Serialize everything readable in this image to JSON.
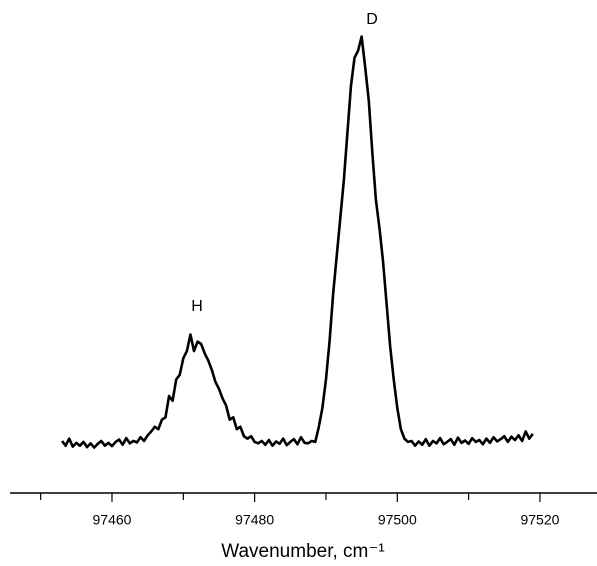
{
  "chart_data": {
    "type": "line",
    "xlabel": "Wavenumber, cm⁻¹",
    "annotations": [
      "H",
      "D"
    ],
    "xlim": [
      97445.7,
      97528
    ],
    "xticks": [
      97460,
      97480,
      97500,
      97520
    ],
    "xminor_ticks": [
      97450,
      97470,
      97490,
      97510
    ],
    "ylim": [
      0,
      100
    ],
    "color": "#000000",
    "x": [
      97453,
      97453.5,
      97454,
      97454.5,
      97455,
      97455.5,
      97456,
      97456.5,
      97457,
      97457.5,
      97458,
      97458.5,
      97459,
      97459.5,
      97460,
      97460.5,
      97461,
      97461.5,
      97462,
      97462.5,
      97463,
      97463.5,
      97464,
      97464.5,
      97465,
      97465.5,
      97466,
      97466.5,
      97467,
      97467.5,
      97468,
      97468.5,
      97469,
      97469.5,
      97470,
      97470.5,
      97471,
      97471.5,
      97472,
      97472.5,
      97473,
      97473.5,
      97474,
      97474.5,
      97475,
      97475.5,
      97476,
      97476.5,
      97477,
      97477.5,
      97478,
      97478.5,
      97479,
      97479.5,
      97480,
      97480.5,
      97481,
      97481.5,
      97482,
      97482.5,
      97483,
      97483.5,
      97484,
      97484.5,
      97485,
      97485.5,
      97486,
      97486.5,
      97487,
      97487.5,
      97488,
      97488.5,
      97489,
      97489.5,
      97490,
      97490.5,
      97491,
      97491.5,
      97492,
      97492.5,
      97493,
      97493.5,
      97494,
      97494.5,
      97495,
      97495.5,
      97496,
      97496.5,
      97497,
      97497.5,
      97498,
      97498.5,
      97499,
      97499.5,
      97500,
      97500.5,
      97501,
      97501.5,
      97502,
      97502.5,
      97503,
      97503.5,
      97504,
      97504.5,
      97505,
      97505.5,
      97506,
      97506.5,
      97507,
      97507.5,
      97508,
      97508.5,
      97509,
      97509.5,
      97510,
      97510.5,
      97511,
      97511.5,
      97512,
      97512.5,
      97513,
      97513.5,
      97514,
      97514.5,
      97515,
      97515.5,
      97516,
      97516.5,
      97517,
      97517.5,
      97518,
      97518.5,
      97519
    ],
    "values": [
      11,
      10,
      11.5,
      9.8,
      10.6,
      10,
      10.8,
      9.7,
      10.5,
      9.6,
      10.4,
      11,
      10,
      10.6,
      9.9,
      10.8,
      11.3,
      10.2,
      11.6,
      10.5,
      11,
      10.7,
      11.8,
      11,
      12.2,
      13,
      14,
      13.5,
      15.5,
      16,
      20.5,
      19.5,
      24,
      25,
      28.5,
      30,
      33.5,
      30,
      32,
      31.5,
      29.5,
      28,
      26,
      23.5,
      22,
      20,
      18.5,
      15.5,
      16,
      13.5,
      14,
      12,
      11.5,
      12,
      10.8,
      10.5,
      11,
      10.2,
      11.2,
      10,
      10.9,
      10.4,
      11.5,
      10.1,
      10.8,
      11.4,
      10.3,
      11.8,
      10.6,
      10.5,
      11,
      10.8,
      14,
      18,
      24,
      32,
      42,
      50,
      58,
      66,
      76,
      86,
      92,
      93.5,
      96.5,
      90,
      83,
      72,
      62,
      56,
      49,
      40,
      31,
      24,
      18,
      13.5,
      11.5,
      10.8,
      11,
      10,
      10.9,
      10.2,
      11.4,
      10,
      11,
      10.5,
      11.6,
      10.3,
      10.8,
      11.4,
      10.2,
      11.7,
      10.6,
      11.1,
      10.4,
      11.6,
      10.8,
      11.2,
      10.3,
      11.5,
      10.6,
      11.8,
      10.9,
      11.4,
      12,
      10.8,
      11.9,
      11.2,
      12.2,
      11,
      13,
      11.5,
      12.5
    ]
  }
}
